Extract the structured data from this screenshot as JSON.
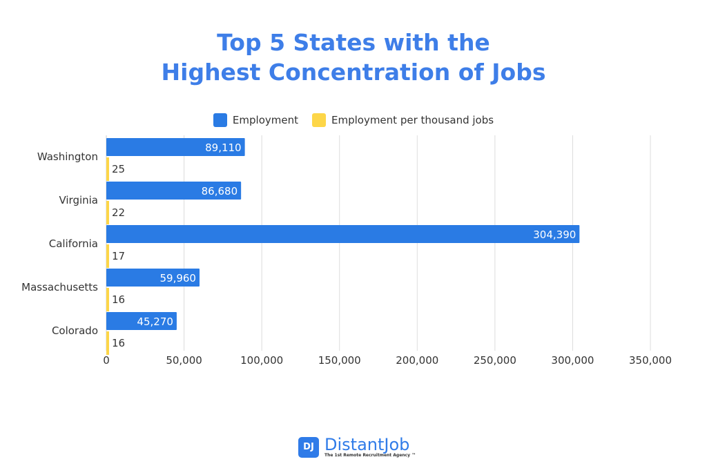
{
  "chart_data": {
    "type": "bar",
    "orientation": "horizontal",
    "title": [
      "Top 5 States with the",
      "Highest Concentration of Jobs"
    ],
    "categories": [
      "Washington",
      "Virginia",
      "California",
      "Massachusetts",
      "Colorado"
    ],
    "series": [
      {
        "name": "Employment",
        "color": "#2a7be4",
        "values": [
          89110,
          86680,
          304390,
          59960,
          45270
        ],
        "labels": [
          "89,110",
          "86,680",
          "304,390",
          "59,960",
          "45,270"
        ]
      },
      {
        "name": "Employment per thousand jobs",
        "color": "#fdd648",
        "values": [
          25,
          22,
          17,
          16,
          16
        ],
        "labels": [
          "25",
          "22",
          "17",
          "16",
          "16"
        ]
      }
    ],
    "xlim": [
      0,
      350000
    ],
    "xticks": [
      0,
      50000,
      100000,
      150000,
      200000,
      250000,
      300000,
      350000
    ],
    "xtick_labels": [
      "0",
      "50,000",
      "100,000",
      "150,000",
      "200,000",
      "250,000",
      "300,000",
      "350,000"
    ],
    "grid": true,
    "legend": "top"
  },
  "logo": {
    "name": "DistantJob",
    "mark": "DJ",
    "tagline": "The 1st Remote Recruitment Agency ™"
  }
}
